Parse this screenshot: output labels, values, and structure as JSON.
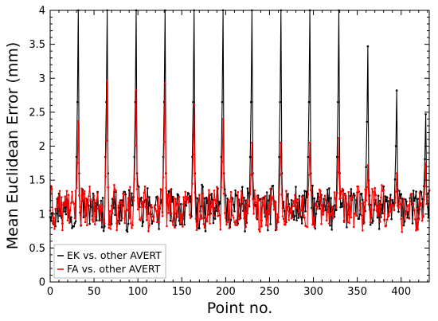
{
  "chart_data": {
    "type": "line",
    "title": "",
    "xlabel": "Point no.",
    "ylabel": "Mean Euclidean Error (mm)",
    "xlim": [
      0,
      432
    ],
    "ylim": [
      0,
      4
    ],
    "x_ticks": [
      0,
      50,
      100,
      150,
      200,
      250,
      300,
      350,
      400
    ],
    "y_ticks": [
      0,
      0.5,
      1,
      1.5,
      2,
      2.5,
      3,
      3.5,
      4
    ],
    "x_tick_labels": [
      "0",
      "50",
      "100",
      "150",
      "200",
      "250",
      "300",
      "350",
      "400"
    ],
    "y_tick_labels": [
      "0",
      "0.5",
      "1",
      "1.5",
      "2",
      "2.5",
      "3",
      "3.5",
      "4"
    ],
    "grid": false,
    "legend_position": "bottom-left",
    "markers": true,
    "x_step": 1,
    "baseline_level": 1.08,
    "series": [
      {
        "name": "EK vs. other AVERT",
        "color": "#000000",
        "peaks": [
          {
            "x": 32,
            "y": 4.0
          },
          {
            "x": 65,
            "y": 4.0
          },
          {
            "x": 98,
            "y": 4.0
          },
          {
            "x": 131,
            "y": 4.0
          },
          {
            "x": 164,
            "y": 4.0
          },
          {
            "x": 197,
            "y": 4.0
          },
          {
            "x": 230,
            "y": 4.0
          },
          {
            "x": 263,
            "y": 4.0
          },
          {
            "x": 296,
            "y": 4.0
          },
          {
            "x": 329,
            "y": 4.0
          },
          {
            "x": 362,
            "y": 3.47
          },
          {
            "x": 395,
            "y": 2.82
          },
          {
            "x": 428,
            "y": 2.47
          }
        ]
      },
      {
        "name": "FA vs. other AVERT",
        "color": "#ff0000",
        "peaks": [
          {
            "x": 32,
            "y": 2.37
          },
          {
            "x": 65,
            "y": 2.97
          },
          {
            "x": 98,
            "y": 2.83
          },
          {
            "x": 131,
            "y": 2.93
          },
          {
            "x": 164,
            "y": 2.6
          },
          {
            "x": 197,
            "y": 2.4
          },
          {
            "x": 230,
            "y": 2.05
          },
          {
            "x": 263,
            "y": 2.05
          },
          {
            "x": 296,
            "y": 2.05
          },
          {
            "x": 329,
            "y": 2.12
          },
          {
            "x": 362,
            "y": 1.72
          },
          {
            "x": 395,
            "y": 1.6
          },
          {
            "x": 428,
            "y": 1.75
          }
        ]
      }
    ]
  }
}
